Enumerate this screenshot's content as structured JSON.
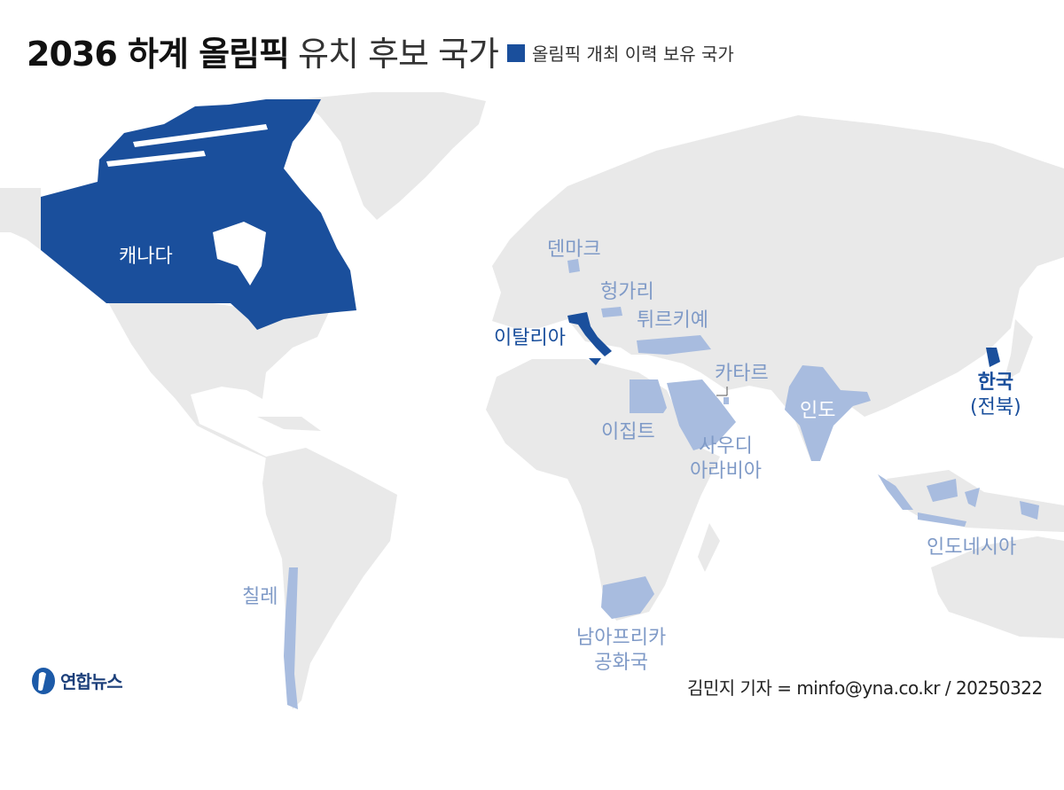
{
  "title": {
    "bold": "2036 하계 올림픽",
    "light": "유치 후보 국가"
  },
  "legend": {
    "label": "올림픽 개최 이력 보유 국가"
  },
  "colors": {
    "host": "#1a4f9c",
    "candidate": "#a8bcdf",
    "land": "#e9e9e9",
    "ocean": "#ffffff",
    "border": "#ffffff"
  },
  "countries": {
    "canada": "캐나다",
    "denmark": "덴마크",
    "hungary": "헝가리",
    "turkiye": "튀르키예",
    "italy": "이탈리아",
    "qatar": "카타르",
    "egypt": "이집트",
    "saudi_line1": "사우디",
    "saudi_line2": "아라비아",
    "india": "인도",
    "korea": "한국",
    "korea_sub": "(전북)",
    "indonesia": "인도네시아",
    "chile": "칠레",
    "south_africa_line1": "남아프리카",
    "south_africa_line2": "공화국"
  },
  "logo": {
    "text": "연합뉴스"
  },
  "credit": "김민지 기자 = minfo@yna.co.kr / 20250322"
}
